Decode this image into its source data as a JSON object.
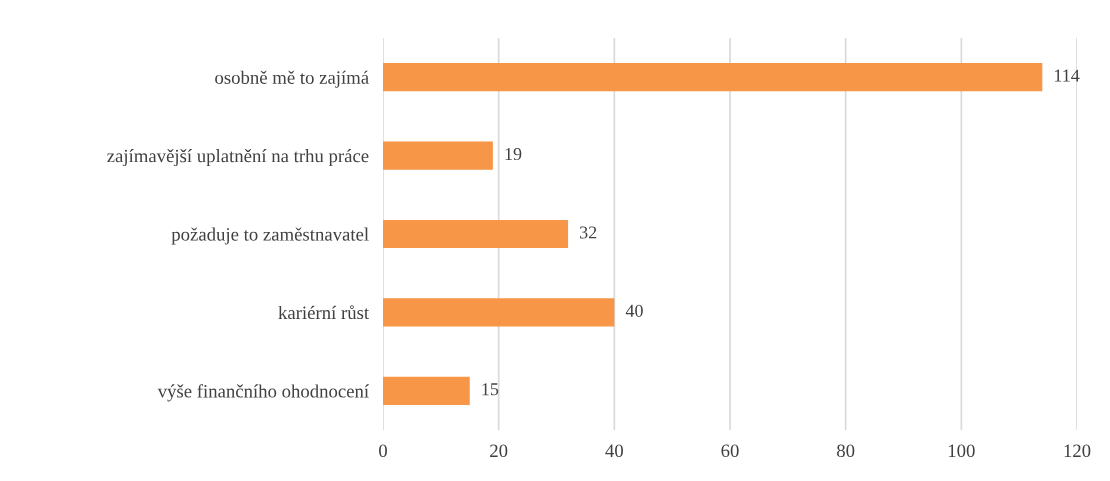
{
  "chart_data": {
    "type": "bar",
    "orientation": "horizontal",
    "categories": [
      "osobně mě to zajímá",
      "zajímavější uplatnění na trhu práce",
      "požaduje to zaměstnavatel",
      "kariérní růst",
      "výše finančního ohodnocení"
    ],
    "values": [
      114,
      19,
      32,
      40,
      15
    ],
    "color": "#f79646",
    "xlim": [
      0,
      120
    ],
    "xticks": [
      0,
      20,
      40,
      60,
      80,
      100,
      120
    ],
    "grid": "x",
    "data_labels": true
  }
}
